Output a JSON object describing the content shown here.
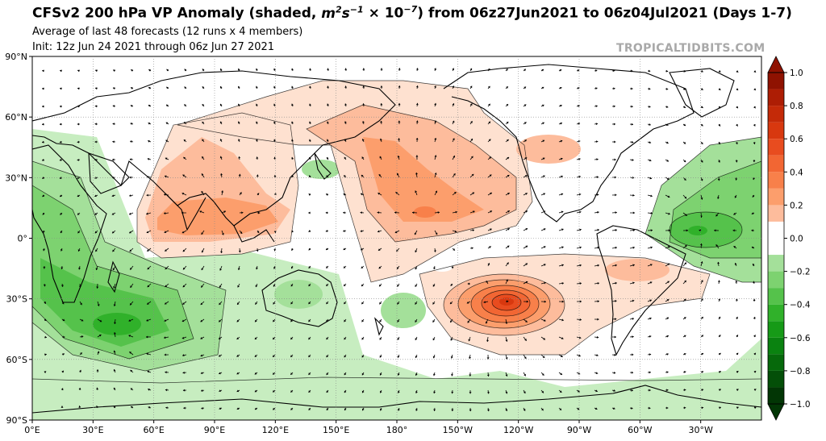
{
  "header": {
    "title_prefix": "CFSv2 200 hPa VP Anomaly (shaded, ",
    "title_unit_m": "m",
    "title_unit_m_exp": "2",
    "title_unit_s": "s",
    "title_unit_s_exp": "−1",
    "title_unit_mult": "× 10",
    "title_unit_mult_exp": "−7",
    "title_suffix": ") from 06z27Jun2021 to 06z04Jul2021 (Days 1-7)",
    "subtitle": "Average of last 48 forecasts (12 runs x 4 members)",
    "init_line": "Init: 12z Jun 24 2021 through 06z Jun 27 2021",
    "brand": "TROPICALTIDBITS.COM"
  },
  "map": {
    "lat_labels": [
      "90°N",
      "60°N",
      "30°N",
      "0°",
      "30°S",
      "60°S",
      "90°S"
    ],
    "lon_labels": [
      "0°E",
      "30°E",
      "60°E",
      "90°E",
      "120°E",
      "150°E",
      "180°",
      "150°W",
      "120°W",
      "90°W",
      "60°W",
      "30°W"
    ],
    "lat_values": [
      90,
      60,
      30,
      0,
      -30,
      -60,
      -90
    ],
    "lon_values": [
      0,
      30,
      60,
      90,
      120,
      150,
      180,
      210,
      240,
      270,
      300,
      330
    ],
    "features": [
      {
        "name": "asia-positive-anomaly",
        "value": 0.3
      },
      {
        "name": "north-pacific-positive-anomaly",
        "value": 0.4
      },
      {
        "name": "south-pacific-positive-maximum",
        "value": 0.75
      },
      {
        "name": "atlantic-negative-minimum",
        "value": -0.5
      },
      {
        "name": "indian-ocean-negative-minimum",
        "value": -0.5
      }
    ]
  },
  "colorbar": {
    "tick_labels": [
      "1.0",
      "0.8",
      "0.6",
      "0.4",
      "0.2",
      "0.0",
      "−0.2",
      "−0.4",
      "−0.6",
      "−0.8",
      "−1.0"
    ],
    "tick_values": [
      1.0,
      0.8,
      0.6,
      0.4,
      0.2,
      0.0,
      -0.2,
      -0.4,
      -0.6,
      -0.8,
      -1.0
    ],
    "levels": [
      1.0,
      0.9,
      0.8,
      0.7,
      0.6,
      0.5,
      0.4,
      0.3,
      0.2,
      0.1,
      -0.1,
      -0.2,
      -0.3,
      -0.4,
      -0.5,
      -0.6,
      -0.7,
      -0.8,
      -0.9,
      -1.0
    ],
    "colors": {
      "pos": [
        "#fee1d0",
        "#fdbc9c",
        "#fc9e6c",
        "#f8804a",
        "#f26633",
        "#e84c1f",
        "#d8380f",
        "#c42a08",
        "#ad1d04",
        "#8f1201"
      ],
      "neg": [
        "#c7edc0",
        "#a4e09a",
        "#7dd270",
        "#55c24b",
        "#30b12a",
        "#169a17",
        "#0a8210",
        "#06690b",
        "#044f08",
        "#023605"
      ]
    }
  }
}
